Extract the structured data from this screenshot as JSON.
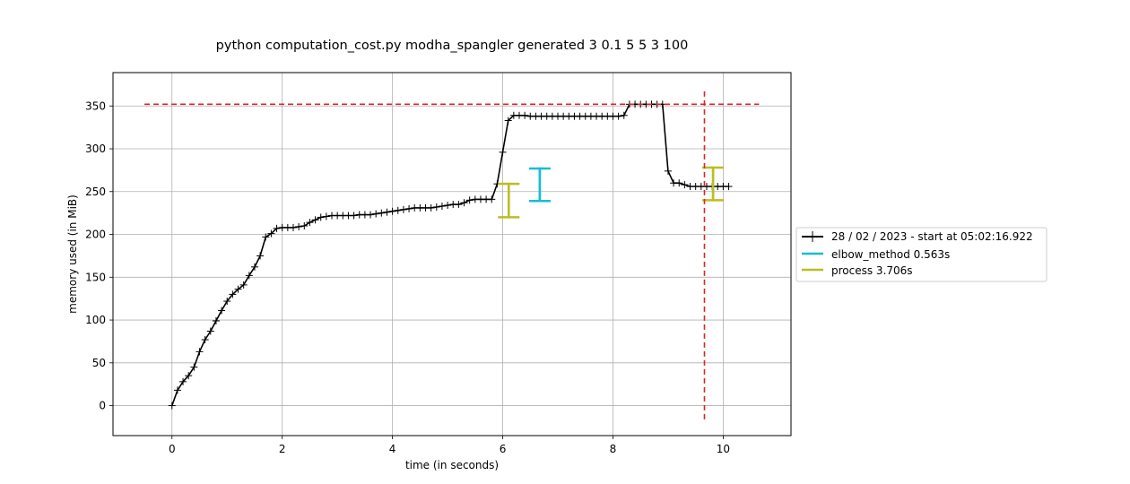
{
  "chart_data": {
    "type": "line",
    "title": "python computation_cost.py modha_spangler generated 3 0.1 5 5 3 100",
    "xlabel": "time (in seconds)",
    "ylabel": "memory used (in MiB)",
    "xlim": [
      -1.07,
      11.23
    ],
    "ylim": [
      -35,
      389
    ],
    "xticks": [
      0,
      2,
      4,
      6,
      8,
      10
    ],
    "yticks": [
      0,
      50,
      100,
      150,
      200,
      250,
      300,
      350
    ],
    "grid": true,
    "legend_placement": "right, outside plot",
    "colors": {
      "memory": "#000000",
      "elbow": "#17becf",
      "process": "#bcbd22",
      "peak": "#d62728",
      "end_bracket": "#ff7f0e",
      "grid": "#b0b0b0"
    },
    "series": [
      {
        "name": "28 / 02 / 2023 - start at 05:02:16.922",
        "x": [
          0.0,
          0.1,
          0.2,
          0.3,
          0.4,
          0.5,
          0.6,
          0.7,
          0.8,
          0.9,
          1.0,
          1.1,
          1.2,
          1.3,
          1.4,
          1.5,
          1.6,
          1.7,
          1.8,
          1.9,
          2.0,
          2.1,
          2.2,
          2.3,
          2.4,
          2.5,
          2.6,
          2.7,
          2.8,
          2.9,
          3.0,
          3.1,
          3.2,
          3.3,
          3.4,
          3.5,
          3.6,
          3.7,
          3.8,
          3.9,
          4.0,
          4.1,
          4.2,
          4.3,
          4.4,
          4.5,
          4.6,
          4.7,
          4.8,
          4.9,
          5.0,
          5.1,
          5.2,
          5.3,
          5.4,
          5.5,
          5.6,
          5.7,
          5.8,
          5.9,
          6.0,
          6.1,
          6.2,
          6.3,
          6.4,
          6.5,
          6.6,
          6.7,
          6.8,
          6.9,
          7.0,
          7.1,
          7.2,
          7.3,
          7.4,
          7.5,
          7.6,
          7.7,
          7.8,
          7.9,
          8.0,
          8.1,
          8.2,
          8.3,
          8.4,
          8.5,
          8.6,
          8.7,
          8.8,
          8.9,
          9.0,
          9.1,
          9.2,
          9.3,
          9.4,
          9.5,
          9.6,
          9.7,
          9.8,
          9.9,
          10.0,
          10.1
        ],
        "y": [
          0,
          18,
          28,
          35,
          45,
          63,
          77,
          87,
          99,
          111,
          122,
          130,
          136,
          141,
          152,
          162,
          175,
          197,
          201,
          207,
          208,
          208,
          208,
          209,
          210,
          214,
          217,
          220,
          221,
          222,
          222,
          222,
          222,
          222,
          223,
          223,
          223,
          224,
          225,
          226,
          227,
          228,
          229,
          230,
          231,
          231,
          231,
          231,
          232,
          233,
          234,
          235,
          235,
          237,
          240,
          241,
          241,
          241,
          241,
          259,
          296,
          333,
          339,
          339,
          339,
          338,
          338,
          338,
          338,
          338,
          338,
          338,
          338,
          338,
          338,
          338,
          338,
          338,
          338,
          338,
          338,
          338,
          339,
          352,
          352,
          352,
          352,
          352,
          352,
          352,
          274,
          260,
          260,
          258,
          256,
          256,
          256,
          256,
          256,
          256,
          256,
          256
        ],
        "marker": "+"
      },
      {
        "name": "elbow_method 0.563s",
        "x": [
          6.11,
          6.673
        ],
        "y_bracket": [
          239,
          277
        ]
      },
      {
        "name": "process 3.706s",
        "x": [
          6.11,
          9.816
        ],
        "y_bracket": [
          220,
          259
        ]
      }
    ],
    "peak_hline": {
      "y": 352,
      "x": [
        -0.5,
        10.65
      ]
    },
    "peak_vline": {
      "x": 9.66,
      "y": [
        -16,
        370
      ]
    },
    "end_bracket": {
      "x": 9.66,
      "y": [
        240,
        278
      ]
    }
  }
}
